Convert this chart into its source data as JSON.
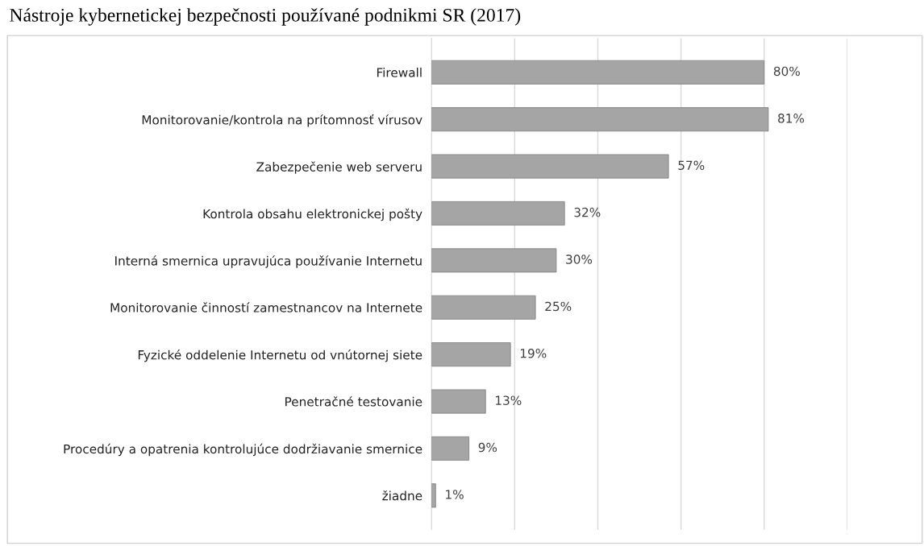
{
  "chart_data": {
    "type": "bar",
    "orientation": "horizontal",
    "title": "Nástroje kybernetickej bezpečnosti používané podnikmi SR (2017)",
    "categories": [
      "Firewall",
      "Monitorovanie/kontrola na prítomnosť vírusov",
      "Zabezpečenie web serveru",
      "Kontrola obsahu elektronickej pošty",
      "Interná smernica upravujúca používanie Internetu",
      "Monitorovanie činností zamestnancov na Internete",
      "Fyzické oddelenie Internetu od vnútornej siete",
      "Penetračné testovanie",
      "Procedúry a opatrenia kontrolujúce dodržiavanie smernice",
      "žiadne"
    ],
    "values": [
      80,
      81,
      57,
      32,
      30,
      25,
      19,
      13,
      9,
      1
    ],
    "value_labels": [
      "80%",
      "81%",
      "57%",
      "32%",
      "30%",
      "25%",
      "19%",
      "13%",
      "9%",
      "1%"
    ],
    "color": "#a5a5a5",
    "xlim": [
      0,
      100
    ],
    "xticks": [
      {
        "value": 0,
        "label": null
      },
      {
        "value": 20,
        "label": null
      },
      {
        "value": 40,
        "label": null
      },
      {
        "value": 60,
        "label": null
      },
      {
        "value": 80,
        "label": null
      },
      {
        "value": 100,
        "label": null
      }
    ],
    "grid": "x",
    "tick_labels": "y",
    "legend": false
  }
}
